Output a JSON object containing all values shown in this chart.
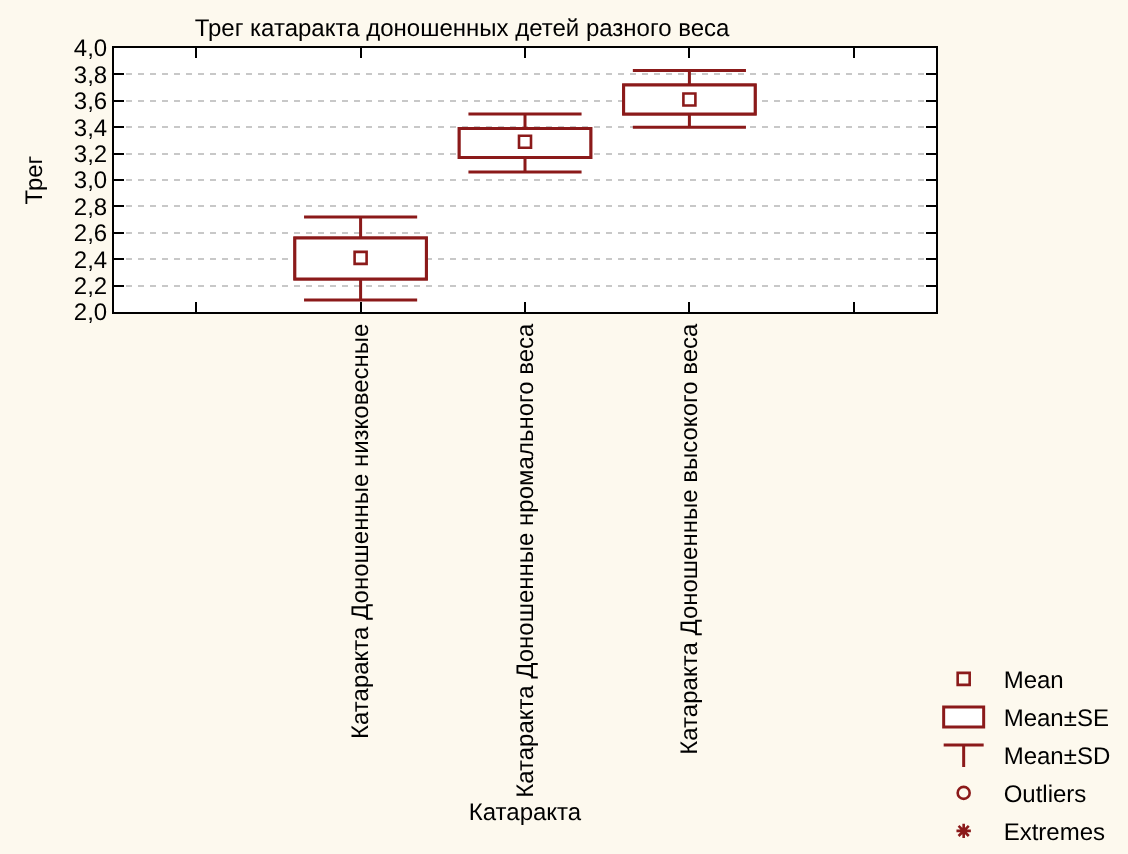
{
  "chart_data": {
    "type": "box",
    "title": "Трег катаракта доношенных детей разного веса",
    "xlabel": "Катаракта",
    "ylabel": "Трег",
    "categories": [
      "Катаракта Доношенные низковесные",
      "Катаракта Доношенные нромального веса",
      "Катаракта Доношенные высокого веса"
    ],
    "series": [
      {
        "name": "Mean",
        "type": "scatter",
        "marker": "square",
        "color": "#8b1a1a",
        "values": [
          2.41,
          3.29,
          3.61
        ]
      },
      {
        "name": "Mean±SE",
        "color": "#8b1a1a",
        "boxes": [
          {
            "q1": 2.25,
            "q3": 2.56
          },
          {
            "q1": 3.17,
            "q3": 3.39
          },
          {
            "q1": 3.5,
            "q3": 3.72
          }
        ]
      },
      {
        "name": "Mean±SD",
        "color": "#8b1a1a",
        "boxes": [
          {
            "low": 2.09,
            "q1": 2.25,
            "q3": 2.56,
            "high": 2.72
          },
          {
            "low": 3.06,
            "q1": 3.17,
            "q3": 3.39,
            "high": 3.5
          },
          {
            "low": 3.4,
            "q1": 3.5,
            "q3": 3.72,
            "high": 3.83
          }
        ]
      },
      {
        "name": "Outliers",
        "type": "scatter",
        "marker": "circle",
        "color": "#8b1a1a",
        "values": [
          null,
          null,
          null
        ]
      },
      {
        "name": "Extremes",
        "type": "scatter",
        "marker": "star",
        "color": "#8b1a1a",
        "values": [
          null,
          null,
          null
        ]
      }
    ],
    "ylim": [
      2.0,
      4.0
    ],
    "yticks": [
      {
        "value": 2.0,
        "label": "2,0"
      },
      {
        "value": 2.2,
        "label": "2,2"
      },
      {
        "value": 2.4,
        "label": "2,4"
      },
      {
        "value": 2.6,
        "label": "2,6"
      },
      {
        "value": 2.8,
        "label": "2,8"
      },
      {
        "value": 3.0,
        "label": "3,0"
      },
      {
        "value": 3.2,
        "label": "3,2"
      },
      {
        "value": 3.4,
        "label": "3,4"
      },
      {
        "value": 3.6,
        "label": "3,6"
      },
      {
        "value": 3.8,
        "label": "3,8"
      },
      {
        "value": 4.0,
        "label": "4,0"
      }
    ],
    "grid": "y",
    "legend": "bottom right"
  }
}
